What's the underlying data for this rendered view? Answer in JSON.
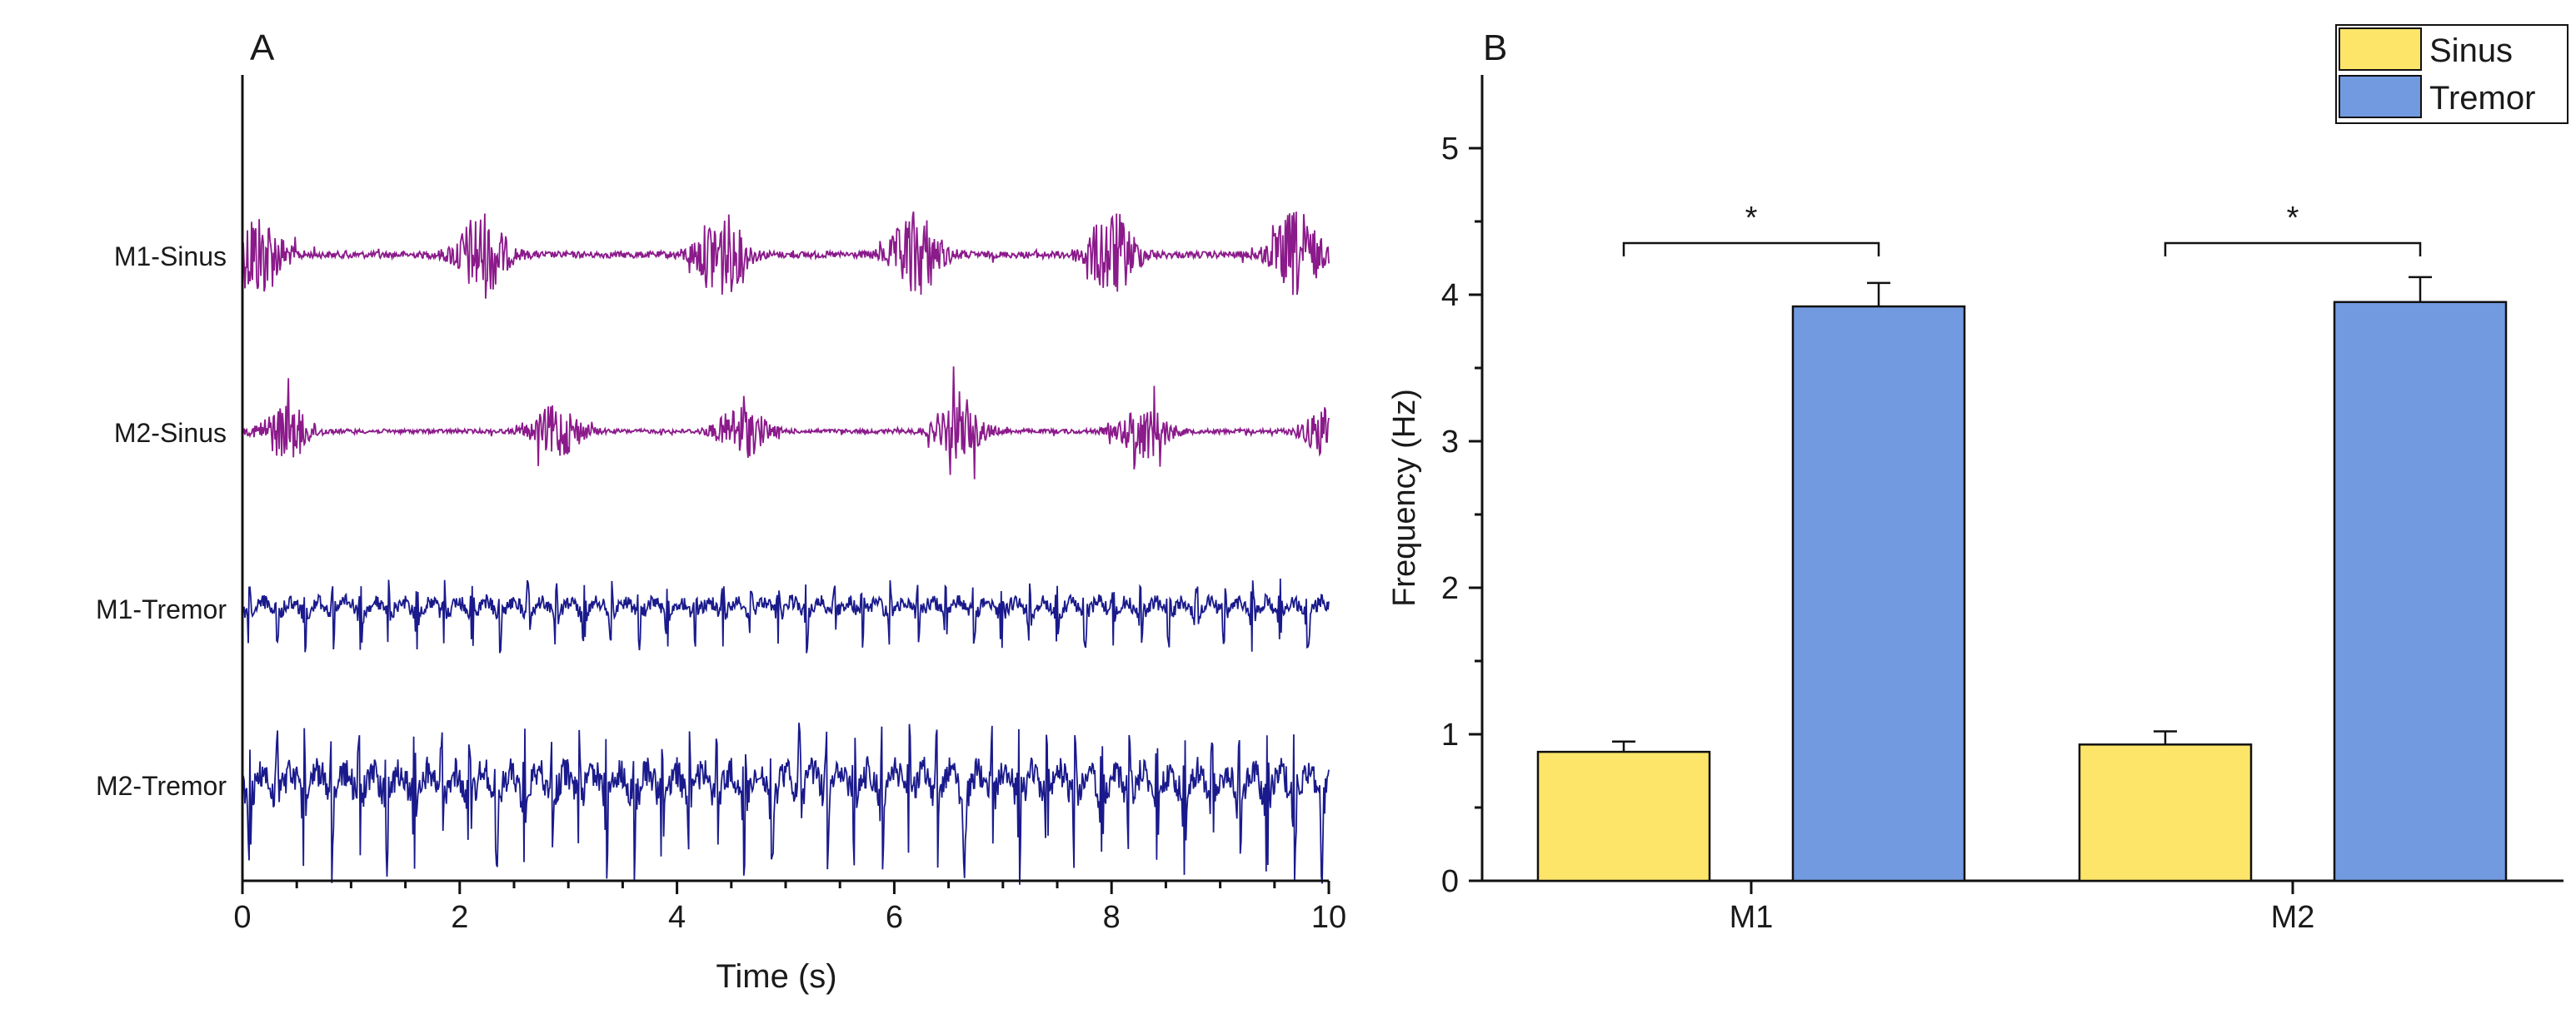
{
  "chart_data": [
    {
      "panel": "A",
      "type": "line",
      "xlabel": "Time (s)",
      "xlim": [
        0,
        10
      ],
      "xticks": [
        0,
        2,
        4,
        6,
        8,
        10
      ],
      "x_minor_step": 0.5,
      "colors": {
        "sinus": "#8b1a8b",
        "tremor": "#1a1a8c"
      },
      "traces": [
        {
          "label": "M1-Sinus",
          "group": "sinus",
          "burst_times_s": [
            0.15,
            2.2,
            4.4,
            6.2,
            8.0,
            9.7
          ]
        },
        {
          "label": "M2-Sinus",
          "group": "sinus",
          "burst_times_s": [
            0.4,
            2.9,
            4.6,
            6.6,
            8.3,
            10.0
          ]
        },
        {
          "label": "M1-Tremor",
          "group": "tremor",
          "oscillation_hz": 3.9
        },
        {
          "label": "M2-Tremor",
          "group": "tremor",
          "oscillation_hz": 3.95
        }
      ]
    },
    {
      "panel": "B",
      "type": "bar",
      "ylabel": "Frequency (Hz)",
      "ylim": [
        0,
        5.5
      ],
      "yticks": [
        0,
        1,
        2,
        3,
        4,
        5
      ],
      "y_minor_step": 0.5,
      "categories": [
        "M1",
        "M2"
      ],
      "series": [
        {
          "name": "Sinus",
          "color": "#fde56a",
          "values": [
            0.88,
            0.93
          ],
          "errors": [
            0.07,
            0.09
          ]
        },
        {
          "name": "Tremor",
          "color": "#729ae0",
          "values": [
            3.92,
            3.95
          ],
          "errors": [
            0.16,
            0.17
          ]
        }
      ],
      "significance": [
        {
          "category": "M1",
          "mark": "*"
        },
        {
          "category": "M2",
          "mark": "*"
        }
      ],
      "legend": "top-right"
    }
  ]
}
